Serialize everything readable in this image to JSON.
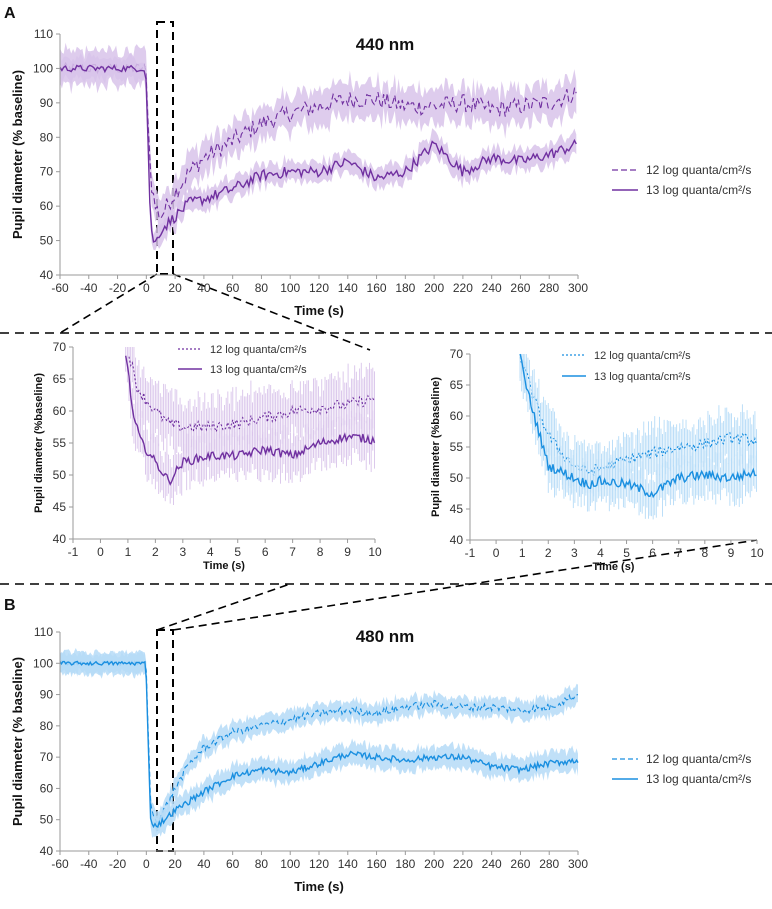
{
  "panel_labels": {
    "a": "A",
    "b": "B"
  },
  "legend": {
    "l12": "12 log quanta/cm²/s",
    "l13": "13 log quanta/cm²/s"
  },
  "colors": {
    "purple": "#7030a0",
    "purple_band": "#d8c3ea",
    "blue": "#1a8fe0",
    "blue_band": "#b5dbf7"
  },
  "chart_data": [
    {
      "id": "A_main",
      "type": "line",
      "title": "440 nm",
      "xlabel": "Time (s)",
      "ylabel": "Pupil diameter (% baseline)",
      "xlim": [
        -60,
        300
      ],
      "ylim": [
        40,
        110
      ],
      "xticks": [
        -60,
        -40,
        -20,
        0,
        20,
        40,
        60,
        80,
        100,
        120,
        140,
        160,
        180,
        200,
        220,
        240,
        260,
        280,
        300
      ],
      "yticks": [
        40,
        50,
        60,
        70,
        80,
        90,
        100,
        110
      ],
      "series": [
        {
          "name": "12 log quanta/cm²/s",
          "style": "dashed",
          "x": [
            -60,
            -30,
            -1,
            0,
            3,
            6,
            10,
            20,
            30,
            40,
            60,
            80,
            100,
            120,
            140,
            160,
            180,
            200,
            220,
            240,
            260,
            280,
            300
          ],
          "y": [
            100,
            100,
            100,
            98,
            68,
            60,
            57,
            64,
            70,
            74,
            79,
            84,
            87,
            89,
            91,
            91,
            89,
            89,
            90,
            88,
            89,
            90,
            93
          ]
        },
        {
          "name": "13 log quanta/cm²/s",
          "style": "solid",
          "x": [
            -60,
            -30,
            -1,
            0,
            3,
            6,
            10,
            20,
            30,
            40,
            60,
            80,
            100,
            120,
            140,
            160,
            180,
            200,
            220,
            240,
            260,
            280,
            300
          ],
          "y": [
            100,
            100,
            100,
            96,
            53,
            49,
            53,
            57,
            61,
            62,
            65,
            69,
            70,
            70,
            73,
            68,
            70,
            78,
            70,
            74,
            73,
            75,
            78
          ]
        }
      ]
    },
    {
      "id": "A_inset",
      "type": "line",
      "title": "",
      "xlabel": "Time (s)",
      "ylabel": "Pupil diameter (%baseline)",
      "xlim": [
        -1,
        10
      ],
      "ylim": [
        40,
        70
      ],
      "xticks": [
        -1,
        0,
        1,
        2,
        3,
        4,
        5,
        6,
        7,
        8,
        9,
        10
      ],
      "yticks": [
        40,
        45,
        50,
        55,
        60,
        65,
        70
      ],
      "series": [
        {
          "name": "12 log quanta/cm²/s",
          "style": "dotted",
          "x": [
            1,
            1.3,
            1.6,
            2,
            2.5,
            3,
            4,
            5,
            6,
            7,
            8,
            9,
            10
          ],
          "y": [
            70,
            64,
            62,
            60,
            58,
            57.5,
            57.5,
            58,
            59,
            60,
            60.5,
            61,
            62
          ]
        },
        {
          "name": "13 log quanta/cm²/s",
          "style": "solid",
          "x": [
            0.9,
            1.2,
            1.5,
            2,
            2.5,
            3,
            4,
            5,
            6,
            7,
            8,
            9,
            10
          ],
          "y": [
            70,
            59,
            55,
            52,
            49,
            52,
            53,
            53,
            54,
            53,
            55,
            56,
            55.5
          ]
        }
      ]
    },
    {
      "id": "B_inset",
      "type": "line",
      "title": "",
      "xlabel": "Time (s)",
      "ylabel": "Pupil diameter (%baseline)",
      "xlim": [
        -1,
        10
      ],
      "ylim": [
        40,
        70
      ],
      "xticks": [
        -1,
        0,
        1,
        2,
        3,
        4,
        5,
        6,
        7,
        8,
        9,
        10
      ],
      "yticks": [
        40,
        45,
        50,
        55,
        60,
        65,
        70
      ],
      "series": [
        {
          "name": "12 log quanta/cm²/s",
          "style": "dotted",
          "x": [
            0.9,
            1.2,
            1.6,
            2,
            2.5,
            3,
            3.5,
            4,
            5,
            6,
            7,
            8,
            9,
            10
          ],
          "y": [
            70,
            66,
            61,
            57,
            54,
            52,
            51,
            51.5,
            53,
            54,
            55,
            55.5,
            56.5,
            56
          ]
        },
        {
          "name": "13 log quanta/cm²/s",
          "style": "solid",
          "x": [
            0.9,
            1.2,
            1.6,
            2,
            2.5,
            3,
            3.5,
            4,
            5,
            6,
            7,
            8,
            9,
            10
          ],
          "y": [
            70,
            64,
            58,
            52,
            51,
            50,
            49,
            49.5,
            49,
            47.5,
            50,
            50.5,
            50,
            51
          ]
        }
      ]
    },
    {
      "id": "B_main",
      "type": "line",
      "title": "480 nm",
      "xlabel": "Time (s)",
      "ylabel": "Pupil diameter (% baseline)",
      "xlim": [
        -60,
        300
      ],
      "ylim": [
        40,
        110
      ],
      "xticks": [
        -60,
        -40,
        -20,
        0,
        20,
        40,
        60,
        80,
        100,
        120,
        140,
        160,
        180,
        200,
        220,
        240,
        260,
        280,
        300
      ],
      "yticks": [
        40,
        50,
        60,
        70,
        80,
        90,
        100,
        110
      ],
      "series": [
        {
          "name": "12 log quanta/cm²/s",
          "style": "dashed",
          "x": [
            -60,
            -30,
            -1,
            0,
            3,
            6,
            10,
            20,
            30,
            40,
            60,
            80,
            100,
            120,
            140,
            160,
            180,
            200,
            220,
            240,
            260,
            280,
            300
          ],
          "y": [
            100,
            100,
            100,
            97,
            55,
            50,
            51,
            60,
            68,
            73,
            78,
            80,
            82,
            84,
            85,
            84,
            86,
            87,
            86,
            86,
            85,
            86,
            90
          ]
        },
        {
          "name": "13 log quanta/cm²/s",
          "style": "solid",
          "x": [
            -60,
            -30,
            -1,
            0,
            3,
            6,
            10,
            20,
            30,
            40,
            60,
            80,
            100,
            120,
            140,
            160,
            180,
            200,
            220,
            240,
            260,
            280,
            300
          ],
          "y": [
            100,
            100,
            100,
            95,
            50,
            48,
            49,
            53,
            56,
            59,
            64,
            66,
            65,
            68,
            71,
            70,
            69,
            70,
            70,
            67,
            66,
            68,
            69
          ]
        }
      ]
    }
  ]
}
